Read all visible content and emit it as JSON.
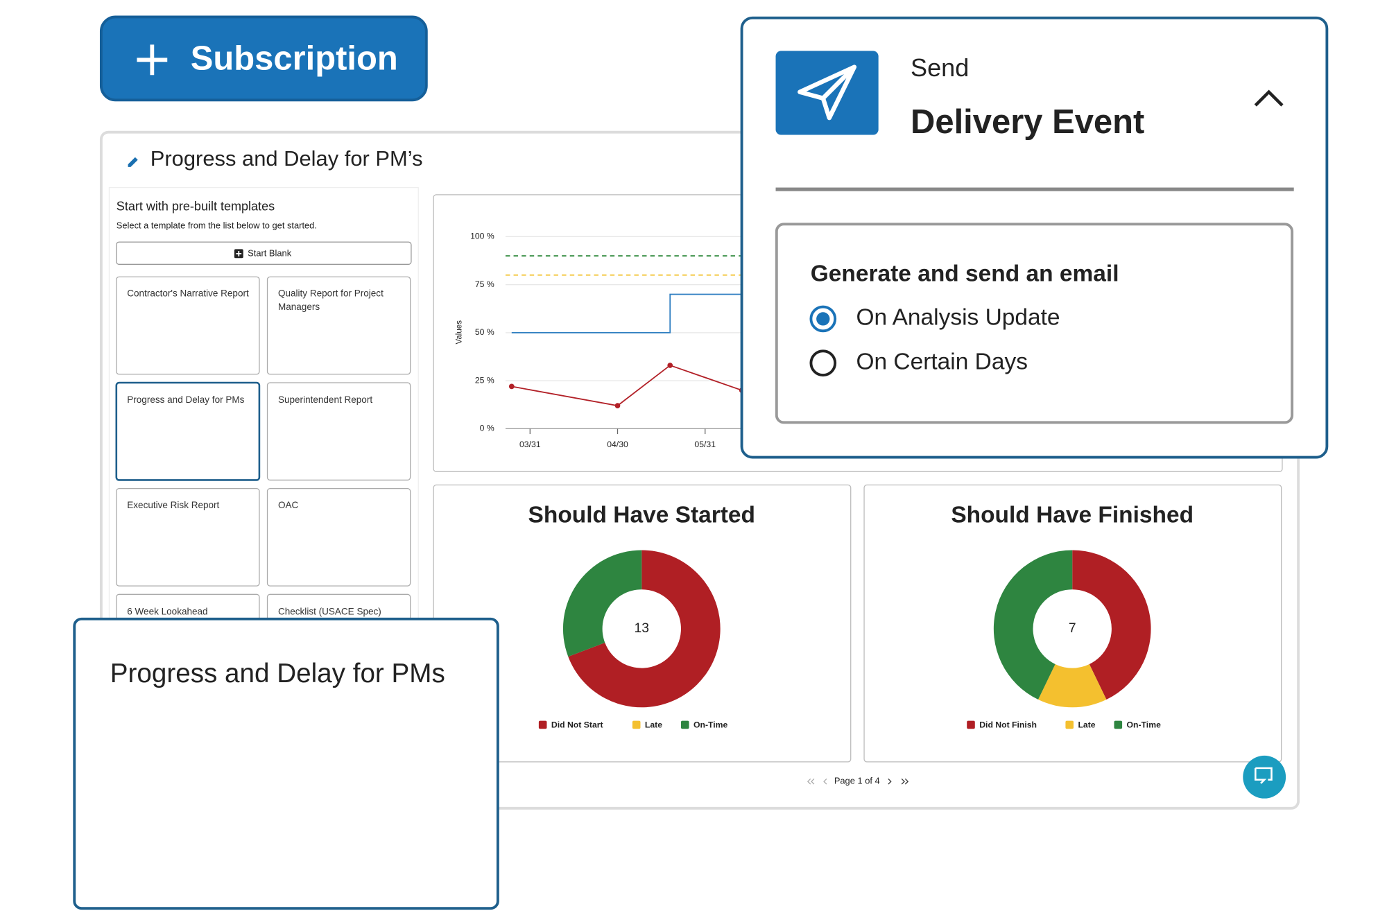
{
  "subscription_button": {
    "label": "Subscription"
  },
  "report": {
    "title": "Progress and Delay for PM’s",
    "templates": {
      "heading": "Start with pre-built templates",
      "hint": "Select a template from the list below to get started.",
      "start_blank": "Start Blank",
      "selected_index": 2,
      "items": [
        "Contractor's Narrative Report",
        "Quality Report for Project Managers",
        "Progress and Delay for PMs",
        "Superintendent Report",
        "Executive Risk Report",
        "OAC",
        "6 Week Lookahead",
        "Checklist (USACE Spec)"
      ]
    }
  },
  "chart_data": [
    {
      "type": "line",
      "y_label": "Values",
      "grid": true,
      "xlim": [
        0.72,
        9.4
      ],
      "ylim": [
        0,
        100
      ],
      "xticks": [
        {
          "value": 1,
          "label": "03/31"
        },
        {
          "value": 2,
          "label": "04/30"
        },
        {
          "value": 3,
          "label": "05/31"
        }
      ],
      "yticks": [
        {
          "value": 0,
          "label": "0 %"
        },
        {
          "value": 25,
          "label": "25 %"
        },
        {
          "value": 50,
          "label": "50 %"
        },
        {
          "value": 75,
          "label": "75 %"
        },
        {
          "value": 100,
          "label": "100 %"
        }
      ],
      "series": [
        {
          "color": "#b22027",
          "x": [
            0.79,
            2,
            2.6,
            3.42
          ],
          "values": [
            22,
            12,
            33,
            20
          ]
        },
        {
          "color": "#2f7fc1",
          "x": [
            0.79,
            2.6,
            2.6,
            3.42
          ],
          "values": [
            50,
            50,
            70,
            70
          ]
        },
        {
          "color": "#3a8f46",
          "dashed": true,
          "x": [
            0.72,
            3.42
          ],
          "values": [
            90,
            90
          ]
        },
        {
          "color": "#f2c230",
          "dashed": true,
          "x": [
            0.72,
            3.42
          ],
          "values": [
            80,
            80
          ]
        }
      ]
    },
    {
      "type": "donut",
      "title": "Should Have Started",
      "center_value": 13,
      "categories": [
        "Did Not Start",
        "Late",
        "On-Time"
      ],
      "values": [
        9,
        0,
        4
      ],
      "colors": [
        "#b01f24",
        "#f4c02f",
        "#2e8540"
      ]
    },
    {
      "type": "donut",
      "title": "Should Have Finished",
      "center_value": 7,
      "categories": [
        "Did Not Finish",
        "Late",
        "On-Time"
      ],
      "values": [
        3,
        1,
        3
      ],
      "colors": [
        "#b01f24",
        "#f4c02f",
        "#2e8540"
      ]
    }
  ],
  "pagination": {
    "label": "Page 1 of 4"
  },
  "delivery_event": {
    "kicker": "Send",
    "title": "Delivery Event",
    "section_title": "Generate and send an email",
    "options": [
      {
        "label": "On Analysis Update",
        "selected": true
      },
      {
        "label": "On Certain Days",
        "selected": false
      }
    ]
  },
  "preview_card": {
    "title": "Progress and Delay for PMs"
  }
}
